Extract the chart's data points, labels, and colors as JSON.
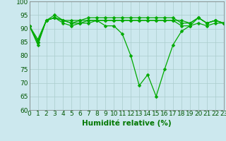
{
  "x": [
    0,
    1,
    2,
    3,
    4,
    5,
    6,
    7,
    8,
    9,
    10,
    11,
    12,
    13,
    14,
    15,
    16,
    17,
    18,
    19,
    20,
    21,
    22,
    23
  ],
  "series": [
    [
      91,
      84,
      93,
      94,
      92,
      91,
      92,
      93,
      93,
      91,
      91,
      88,
      80,
      69,
      73,
      65,
      75,
      84,
      89,
      91,
      94,
      92,
      93,
      92
    ],
    [
      91,
      85,
      93,
      94,
      93,
      92,
      93,
      93,
      93,
      93,
      93,
      93,
      93,
      93,
      93,
      93,
      93,
      93,
      93,
      92,
      94,
      92,
      93,
      92
    ],
    [
      91,
      85,
      93,
      95,
      93,
      93,
      93,
      94,
      94,
      94,
      94,
      94,
      94,
      94,
      94,
      94,
      94,
      94,
      92,
      92,
      94,
      92,
      93,
      92
    ],
    [
      91,
      86,
      93,
      94,
      93,
      92,
      92,
      92,
      93,
      93,
      93,
      93,
      93,
      93,
      93,
      93,
      93,
      93,
      91,
      91,
      92,
      91,
      92,
      92
    ]
  ],
  "bg_color": "#cce8ee",
  "grid_color": "#aacccc",
  "line_color": "#00aa00",
  "xlabel": "Humidité relative (%)",
  "xlabel_color": "#007700",
  "ylim": [
    60,
    100
  ],
  "yticks": [
    60,
    65,
    70,
    75,
    80,
    85,
    90,
    95,
    100
  ],
  "xlim": [
    0,
    23
  ],
  "xtick_fontsize": 6.5,
  "ytick_fontsize": 6.5,
  "xlabel_fontsize": 7.5
}
